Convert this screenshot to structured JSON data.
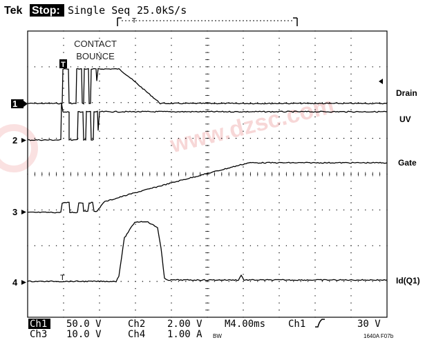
{
  "header": {
    "brand": "Tek",
    "state": "Stop:",
    "mode": "Single Seq",
    "rate": "25.0kS/s"
  },
  "annotation": {
    "line1": "CONTACT",
    "line2": "BOUNCE"
  },
  "trace_labels": {
    "drain": "Drain",
    "uv": "UV",
    "gate": "Gate",
    "id": "Id(Q1)"
  },
  "channel_markers": [
    "1",
    "2",
    "3",
    "4"
  ],
  "trigger_marker": "T",
  "footer": {
    "row1": {
      "ch1_label": "Ch1",
      "ch1_scale": "50.0 V",
      "ch2_label": "Ch2",
      "ch2_scale": "2.00 V",
      "timebase": "M4.00ms",
      "trig_source": "Ch1",
      "trig_level": "30 V"
    },
    "row2": {
      "ch3_label": "Ch3",
      "ch3_scale": "10.0 V",
      "ch4_label": "Ch4",
      "ch4_scale": "1.00 A",
      "bw_flag": "BW"
    },
    "figure_id": "1640A F07b"
  },
  "watermark": {
    "text": "www.dzsc.com",
    "color": "#f3c6c6"
  },
  "colors": {
    "trace": "#000000",
    "background": "#ffffff",
    "grid": "#000000"
  }
}
